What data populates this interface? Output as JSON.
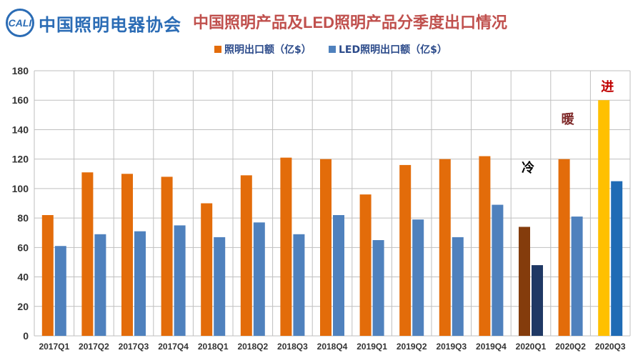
{
  "header": {
    "logo_mark": "CALI",
    "logo_text": "中国照明电器协会",
    "title": "中国照明产品及LED照明产品分季度出口情况"
  },
  "chart_data": {
    "type": "bar",
    "categories": [
      "2017Q1",
      "2017Q2",
      "2017Q3",
      "2017Q4",
      "2018Q1",
      "2018Q2",
      "2018Q3",
      "2018Q4",
      "2019Q1",
      "2019Q2",
      "2019Q3",
      "2019Q4",
      "2020Q1",
      "2020Q2",
      "2020Q3"
    ],
    "series": [
      {
        "name": "照明出口额（亿$）",
        "color": "#e36c0a",
        "values": [
          82,
          111,
          110,
          108,
          90,
          109,
          121,
          120,
          96,
          116,
          120,
          122,
          74,
          120,
          160
        ]
      },
      {
        "name": "LED照明出口额（亿$）",
        "color": "#4f81bd",
        "values": [
          61,
          69,
          71,
          75,
          67,
          77,
          69,
          82,
          65,
          79,
          67,
          89,
          48,
          81,
          105
        ]
      }
    ],
    "highlight_colors": {
      "2020Q1": [
        "#843c0c",
        "#1f3864"
      ],
      "2020Q3": [
        "#ffc000",
        "#1f6bb5"
      ]
    },
    "annotations": [
      {
        "text": "冷",
        "category": "2020Q1",
        "value": 115,
        "color": "#000000"
      },
      {
        "text": "暖",
        "category": "2020Q2",
        "value": 148,
        "color": "#7f2a2a"
      },
      {
        "text": "进",
        "category": "2020Q3",
        "value": 170,
        "color": "#c00000"
      }
    ],
    "ylim": [
      0,
      180
    ],
    "yticks": [
      0,
      20,
      40,
      60,
      80,
      100,
      120,
      140,
      160,
      180
    ],
    "grid": true,
    "legend_position": "top"
  }
}
